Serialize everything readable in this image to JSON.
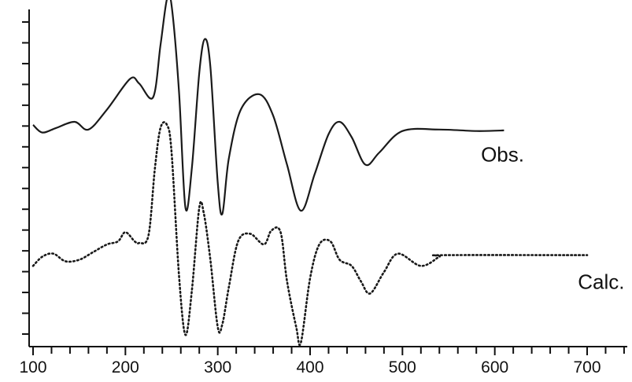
{
  "chart_data": {
    "type": "line",
    "title": "",
    "xlabel": "",
    "ylabel": "",
    "xlim": [
      95,
      750
    ],
    "ylim": [
      0,
      10
    ],
    "x_ticks": [
      100,
      200,
      300,
      400,
      500,
      600,
      700
    ],
    "x_minor_step": 20,
    "y_tick_count": 16,
    "grid": false,
    "series": [
      {
        "name": "Obs.",
        "style": "solid",
        "color": "#1a1a1a",
        "x": [
          100,
          110,
          125,
          145,
          160,
          180,
          205,
          215,
          230,
          238,
          245,
          250,
          258,
          265,
          272,
          280,
          286,
          292,
          300,
          305,
          312,
          325,
          345,
          360,
          375,
          390,
          405,
          420,
          432,
          445,
          460,
          475,
          500,
          540,
          580,
          610
        ],
        "y": [
          6.9,
          6.65,
          6.8,
          7.0,
          6.75,
          7.4,
          8.4,
          8.25,
          7.8,
          9.5,
          11.0,
          10.8,
          8.0,
          4.2,
          5.5,
          8.6,
          9.7,
          8.8,
          5.0,
          4.0,
          5.8,
          7.4,
          7.9,
          7.2,
          5.6,
          4.1,
          5.3,
          6.6,
          7.0,
          6.5,
          5.6,
          6.0,
          6.7,
          6.75,
          6.7,
          6.72
        ],
        "label_x": 585,
        "label_y": 5.7
      },
      {
        "name": "Calc.",
        "style": "dotted",
        "color": "#1a1a1a",
        "x": [
          100,
          110,
          122,
          135,
          150,
          165,
          180,
          192,
          200,
          210,
          215,
          225,
          232,
          238,
          245,
          250,
          258,
          265,
          272,
          280,
          285,
          292,
          300,
          305,
          312,
          322,
          335,
          350,
          358,
          368,
          375,
          385,
          390,
          400,
          410,
          422,
          432,
          445,
          455,
          465,
          480,
          495,
          520,
          540,
          545,
          700
        ],
        "y": [
          2.3,
          2.6,
          2.7,
          2.45,
          2.5,
          2.75,
          3.0,
          3.1,
          3.4,
          3.1,
          3.05,
          3.3,
          5.5,
          6.8,
          6.9,
          6.0,
          2.0,
          0.05,
          1.5,
          4.2,
          4.0,
          2.5,
          0.3,
          0.4,
          1.6,
          3.1,
          3.35,
          3.0,
          3.45,
          3.4,
          1.8,
          0.3,
          -0.2,
          1.9,
          3.0,
          3.1,
          2.5,
          2.3,
          1.8,
          1.4,
          2.1,
          2.7,
          2.3,
          2.6,
          2.65,
          2.65
        ],
        "label_x": 690,
        "label_y": 1.55
      }
    ]
  }
}
